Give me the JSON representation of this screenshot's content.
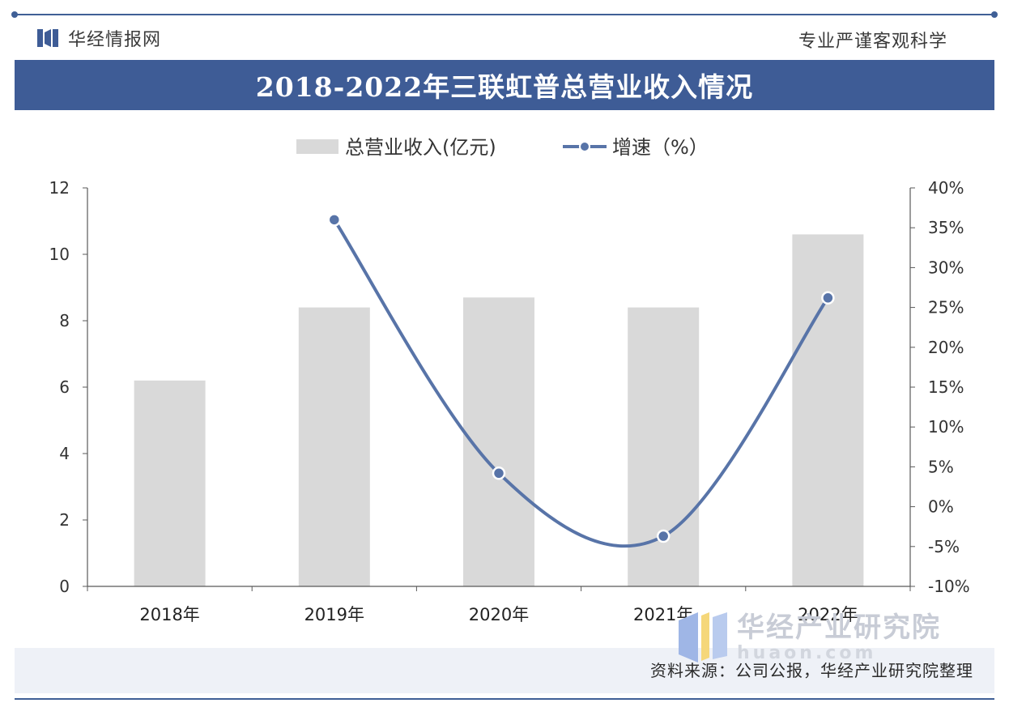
{
  "header": {
    "brand_name": "华经情报网",
    "slogan": "专业严谨客观科学",
    "title": "2018-2022年三联虹普总营业收入情况"
  },
  "footer": {
    "source": "资料来源：公司公报，华经产业研究院整理",
    "institute_name": "华经产业研究院",
    "institute_url": "huaon.com"
  },
  "colors": {
    "brand": "#3e5c96",
    "bar": "#d9d9d9",
    "line": "#5874a8"
  },
  "chart_data": {
    "type": "bar",
    "categories": [
      "2018年",
      "2019年",
      "2020年",
      "2021年",
      "2022年"
    ],
    "series": [
      {
        "name": "总营业收入(亿元)",
        "type": "bar",
        "axis": "left",
        "values": [
          6.2,
          8.4,
          8.7,
          8.4,
          10.6
        ]
      },
      {
        "name": "增速（%）",
        "type": "line",
        "axis": "right",
        "smooth": true,
        "values": [
          null,
          36,
          4.2,
          -3.7,
          26.2
        ]
      }
    ],
    "y_left": {
      "min": 0,
      "max": 12,
      "ticks": [
        0,
        2,
        4,
        6,
        8,
        10,
        12
      ],
      "tick_labels": [
        "0",
        "2",
        "4",
        "6",
        "8",
        "10",
        "12"
      ]
    },
    "y_right": {
      "min": -10,
      "max": 40,
      "ticks": [
        -10,
        -5,
        0,
        5,
        10,
        15,
        20,
        25,
        30,
        35,
        40
      ],
      "tick_labels": [
        "-10%",
        "-5%",
        "0%",
        "5%",
        "10%",
        "15%",
        "20%",
        "25%",
        "30%",
        "35%",
        "40%"
      ]
    },
    "legend": "top-center",
    "grid": false
  }
}
